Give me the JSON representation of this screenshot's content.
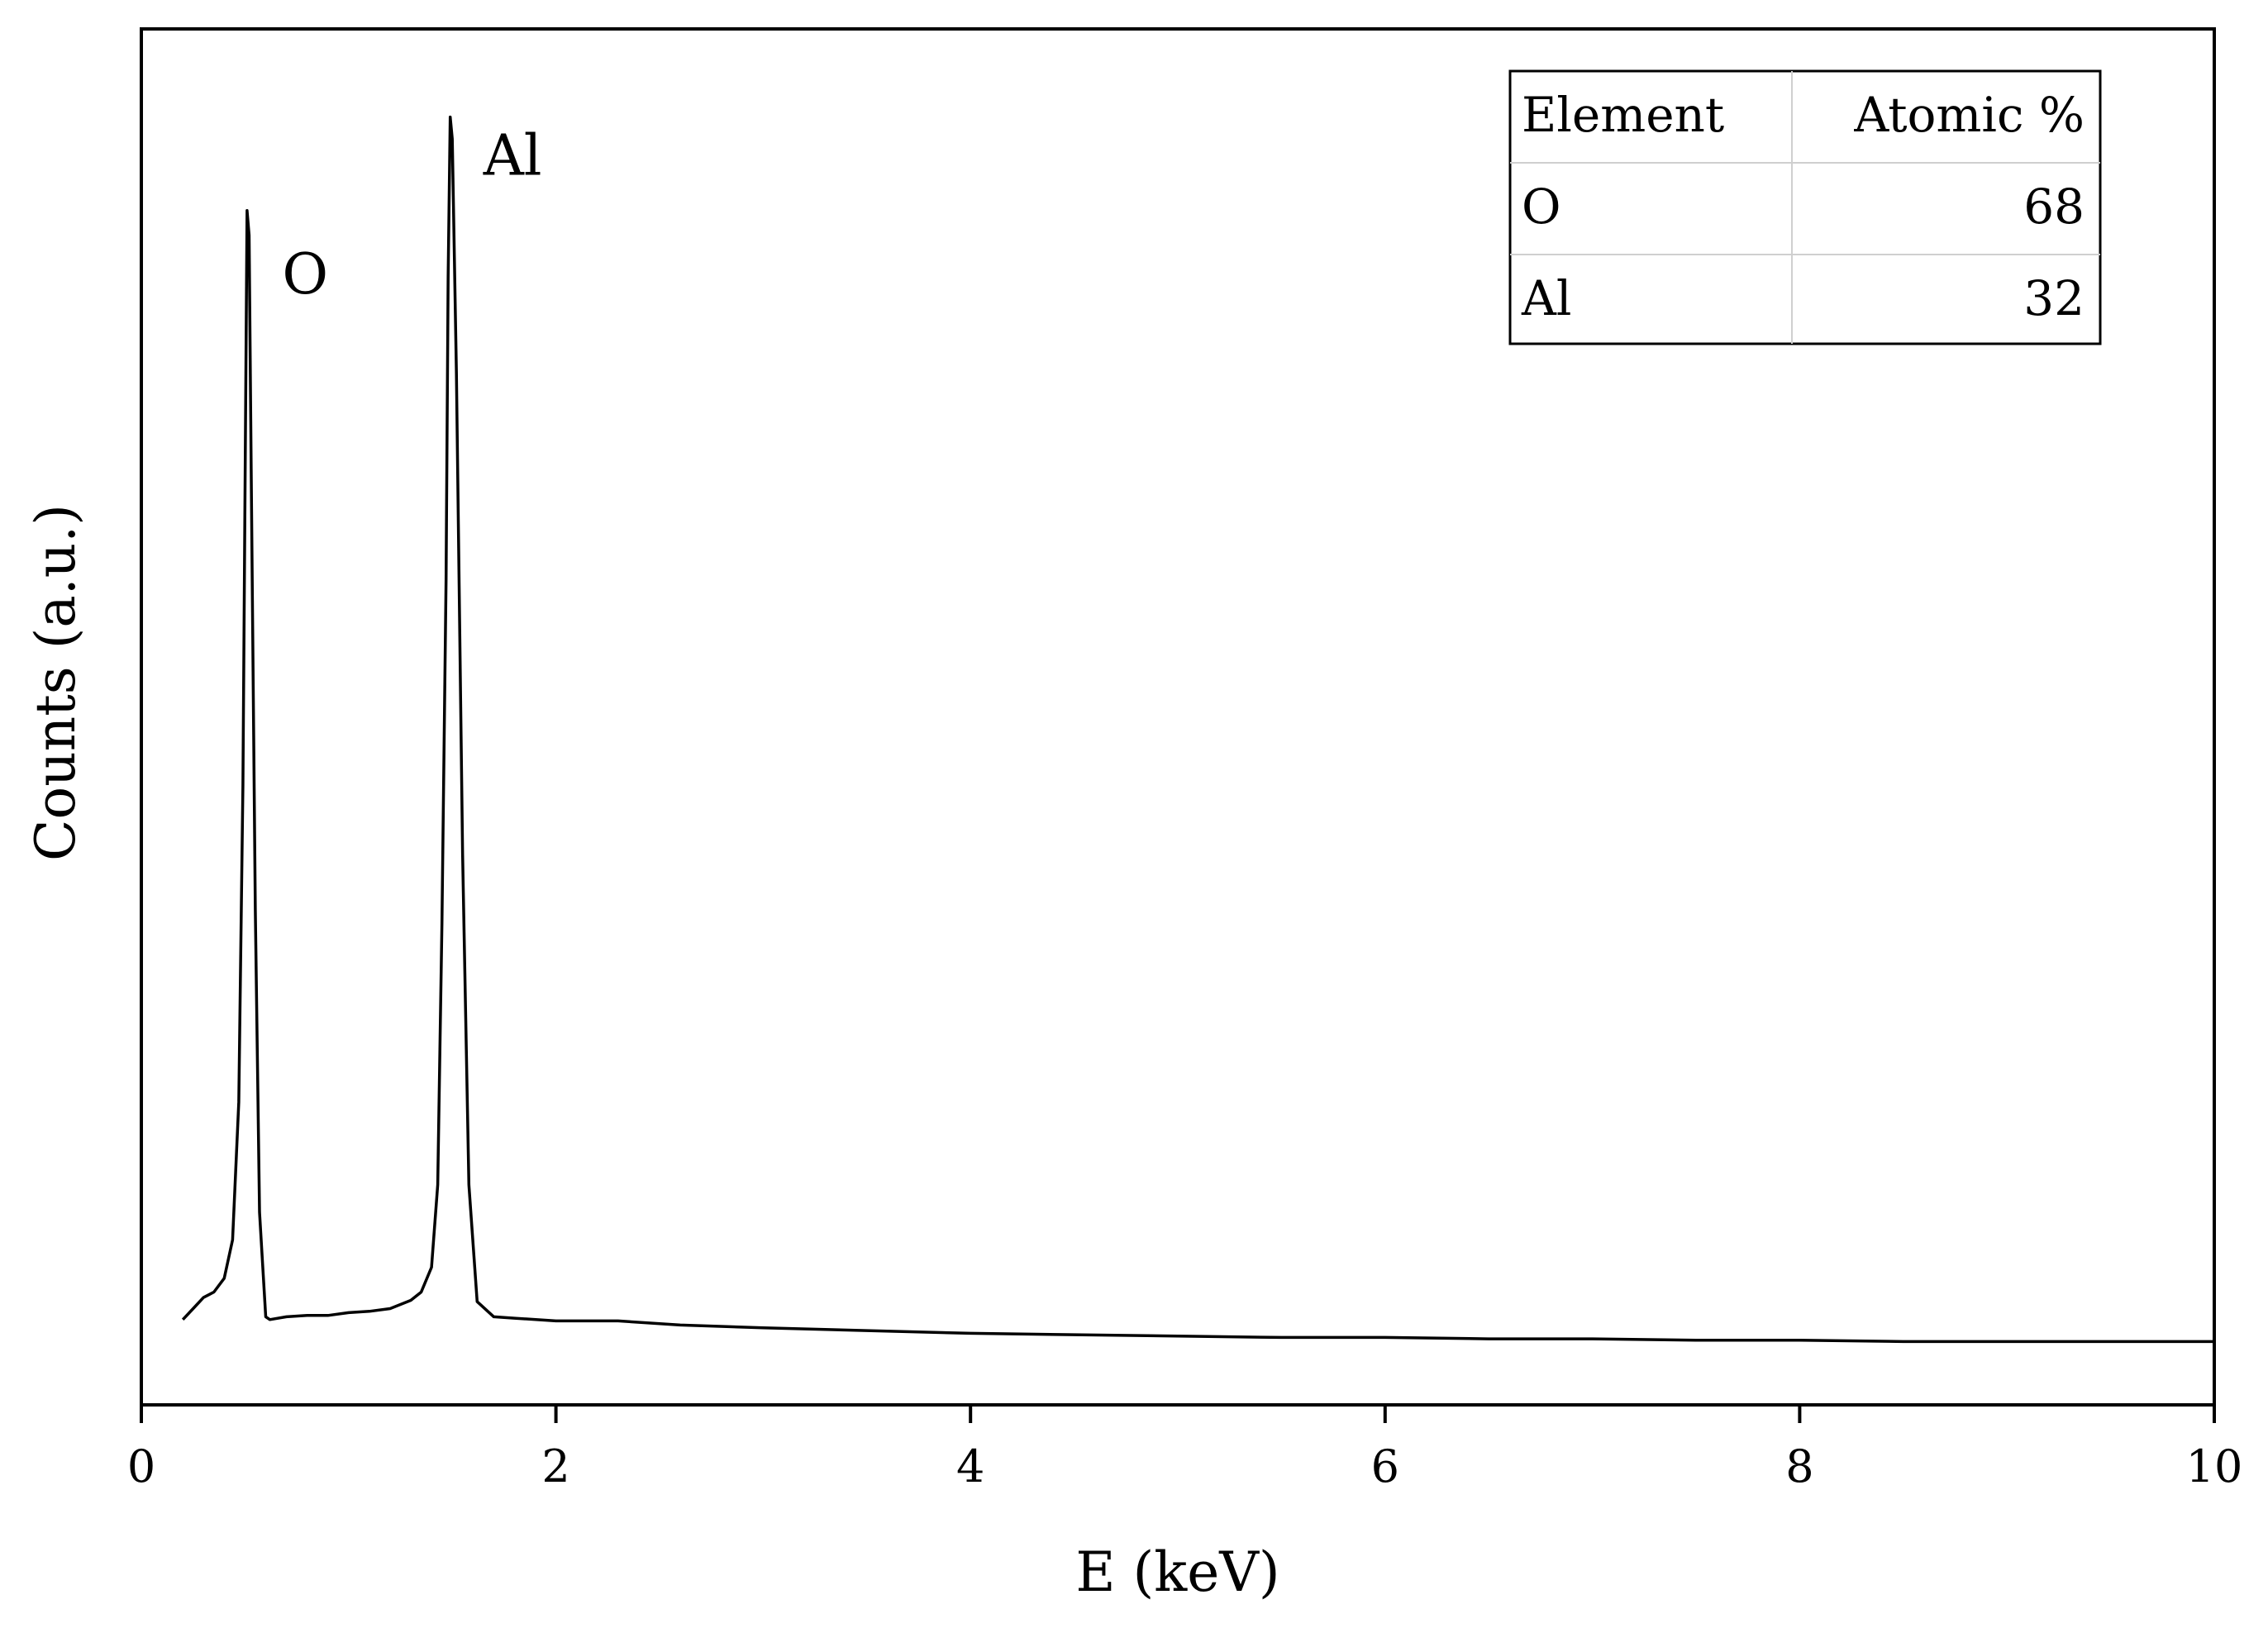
{
  "chart_data": {
    "type": "line",
    "title": "",
    "xlabel": "E (keV)",
    "ylabel": "Counts (a.u.)",
    "xlim": [
      0,
      10
    ],
    "ylim": [
      0,
      100
    ],
    "y_tick_labels_shown": false,
    "grid": false,
    "legend": "none",
    "xticks": [
      "0",
      "2",
      "4",
      "6",
      "8",
      "10"
    ],
    "series": [
      {
        "x": [
          0.2,
          0.25,
          0.3,
          0.35,
          0.4,
          0.44,
          0.47,
          0.49,
          0.51,
          0.52,
          0.53,
          0.55,
          0.57,
          0.6,
          0.62,
          0.7,
          0.8,
          0.9,
          1.0,
          1.1,
          1.2,
          1.3,
          1.35,
          1.4,
          1.43,
          1.45,
          1.47,
          1.48,
          1.49,
          1.5,
          1.52,
          1.55,
          1.58,
          1.62,
          1.7,
          1.8,
          2.0,
          2.3,
          2.6,
          3.0,
          3.5,
          4.0,
          4.5,
          5.0,
          5.5,
          6.0,
          6.5,
          7.0,
          7.5,
          8.0,
          8.5,
          9.0,
          9.5,
          10.0
        ],
        "values": [
          6.2,
          7.0,
          7.8,
          8.2,
          9.2,
          12.0,
          22.0,
          45.0,
          86.8,
          85.0,
          68.0,
          36.0,
          14.0,
          6.4,
          6.2,
          6.4,
          6.5,
          6.5,
          6.7,
          6.8,
          7.0,
          7.6,
          8.2,
          10.0,
          16.0,
          35.0,
          60.0,
          82.0,
          93.6,
          92.0,
          75.0,
          40.0,
          16.0,
          7.5,
          6.4,
          6.3,
          6.1,
          6.1,
          5.8,
          5.6,
          5.4,
          5.2,
          5.1,
          5.0,
          4.9,
          4.9,
          4.8,
          4.8,
          4.7,
          4.7,
          4.6,
          4.6,
          4.6,
          4.6
        ]
      }
    ],
    "annotations": [
      {
        "text": "O",
        "x": 0.52
      },
      {
        "text": "Al",
        "x": 1.49
      }
    ]
  },
  "table": {
    "headers": [
      "Element",
      "Atomic %"
    ],
    "rows": [
      [
        "O",
        "68"
      ],
      [
        "Al",
        "32"
      ]
    ]
  }
}
